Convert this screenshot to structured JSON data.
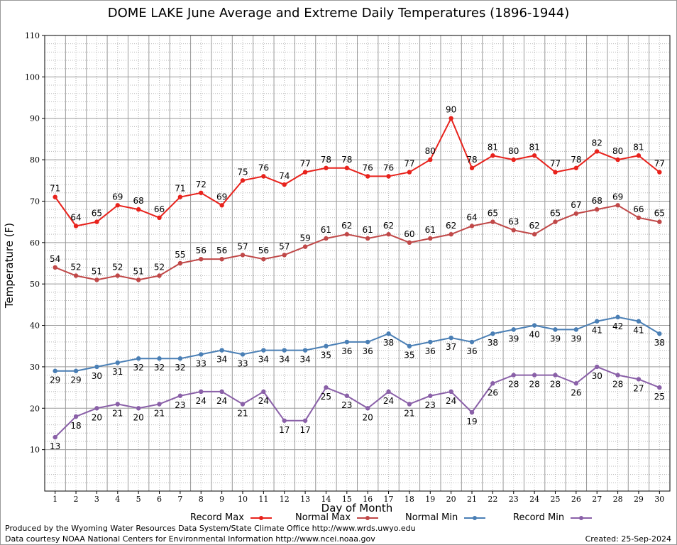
{
  "title": "DOME LAKE June Average and Extreme Daily Temperatures (1896-1944)",
  "footer": {
    "produced_by": "Produced by the Wyoming Water Resources Data System/State Climate Office http://www.wrds.uwyo.edu",
    "data_courtesy": "Data courtesy NOAA National Centers for Environmental Information http://www.ncei.noaa.gov",
    "created": "Created:  25-Sep-2024"
  },
  "chart_data": {
    "type": "line",
    "title": "DOME LAKE June Average and Extreme Daily Temperatures (1896-1944)",
    "xlabel": "Day of Month",
    "ylabel": "Temperature (F)",
    "ylim": [
      0,
      110
    ],
    "yticks": [
      10,
      20,
      30,
      40,
      50,
      60,
      70,
      80,
      90,
      100,
      110
    ],
    "x": [
      1,
      2,
      3,
      4,
      5,
      6,
      7,
      8,
      9,
      10,
      11,
      12,
      13,
      14,
      15,
      16,
      17,
      18,
      19,
      20,
      21,
      22,
      23,
      24,
      25,
      26,
      27,
      28,
      29,
      30
    ],
    "grid": true,
    "legend_position": "bottom",
    "series": [
      {
        "name": "Record Max",
        "color": "#e8221c",
        "label_position": "above",
        "values": [
          71,
          64,
          65,
          69,
          68,
          66,
          71,
          72,
          69,
          75,
          76,
          74,
          77,
          78,
          78,
          76,
          76,
          77,
          80,
          90,
          78,
          81,
          80,
          81,
          77,
          78,
          82,
          80,
          81,
          77
        ]
      },
      {
        "name": "Normal Max",
        "color": "#c04848",
        "label_position": "above",
        "values": [
          54,
          52,
          51,
          52,
          51,
          52,
          55,
          56,
          56,
          57,
          56,
          57,
          59,
          61,
          62,
          61,
          62,
          60,
          61,
          62,
          64,
          65,
          63,
          62,
          65,
          67,
          68,
          69,
          66,
          65
        ]
      },
      {
        "name": "Normal Min",
        "color": "#4a7fb5",
        "label_position": "below",
        "values": [
          29,
          29,
          30,
          31,
          32,
          32,
          32,
          33,
          34,
          33,
          34,
          34,
          34,
          35,
          36,
          36,
          38,
          35,
          36,
          37,
          36,
          38,
          39,
          40,
          39,
          39,
          41,
          42,
          41,
          38
        ]
      },
      {
        "name": "Record Min",
        "color": "#8a60a8",
        "label_position": "below",
        "values": [
          13,
          18,
          20,
          21,
          20,
          21,
          23,
          24,
          24,
          21,
          24,
          17,
          17,
          25,
          23,
          20,
          24,
          21,
          23,
          24,
          19,
          26,
          28,
          28,
          28,
          26,
          30,
          28,
          27,
          25
        ]
      }
    ]
  }
}
